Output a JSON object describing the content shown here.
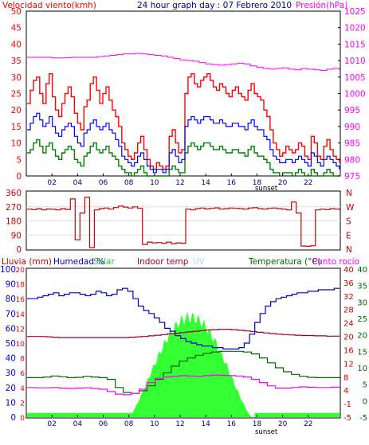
{
  "header": {
    "wind_label": "Velocidad viento(kmh)",
    "title": "24 hour graph day : 07 Febrero 2010",
    "pressure_label": "Presión(hPa)"
  },
  "footer_labels": {
    "top_panel": "sunset",
    "bottom_panel": "sunset"
  },
  "legend": {
    "rain": "Lluvia (mm)",
    "humidity": "Humedad %",
    "solar": "Solar",
    "indoor": "Indoor temp",
    "uv": "UV",
    "temperature": "Temperatura (°C)",
    "dewpoint": "Punto rocío"
  },
  "colors": {
    "wind_gust": "#ff0000",
    "wind_avg": "#0000ff",
    "wind_low": "#008000",
    "pressure": "#ff00ff",
    "direction": "#cc0000",
    "humidity": "#0000cc",
    "indoor": "#990033",
    "temperature": "#006600",
    "dewpoint": "#ff00ff",
    "solar": "#33ff33",
    "rain": "#33ff33",
    "axis_left": "#ff0000",
    "axis_right_pressure": "#ff00ff",
    "axis_blue": "#0000ff",
    "axis_red": "#cc0000",
    "axis_green": "#006600"
  },
  "chart_data": [
    {
      "type": "line",
      "name": "wind-pressure",
      "x_ticks": [
        "02",
        "04",
        "06",
        "08",
        "10",
        "12",
        "14",
        "16",
        "18",
        "20",
        "22"
      ],
      "ylim_left": [
        0,
        50
      ],
      "ylim_right": [
        975,
        1025
      ],
      "yticks_left": [
        "0",
        "5",
        "10",
        "15",
        "20",
        "25",
        "30",
        "35",
        "40",
        "45",
        "50"
      ],
      "yticks_right": [
        "975",
        "980",
        "985",
        "990",
        "995",
        "1000",
        "1005",
        "1010",
        "1015",
        "1020",
        "1025"
      ],
      "series": [
        {
          "key": "gust",
          "values": [
            22,
            26,
            29,
            30,
            25,
            22,
            28,
            31,
            24,
            20,
            18,
            22,
            25,
            27,
            24,
            19,
            16,
            14,
            21,
            23,
            28,
            30,
            26,
            22,
            25,
            27,
            23,
            20,
            18,
            15,
            10,
            8,
            6,
            5,
            7,
            10,
            12,
            8,
            5,
            3,
            2,
            4,
            3,
            2,
            3,
            12,
            14,
            10,
            7,
            8,
            25,
            30,
            31,
            28,
            27,
            29,
            30,
            31,
            29,
            27,
            26,
            28,
            27,
            25,
            24,
            26,
            27,
            25,
            24,
            23,
            26,
            28,
            25,
            24,
            23,
            20,
            18,
            14,
            10,
            8,
            6,
            7,
            9,
            8,
            7,
            8,
            10,
            9,
            6,
            5,
            12,
            10,
            6,
            5,
            9,
            11,
            8,
            6,
            5,
            4
          ]
        },
        {
          "key": "avg",
          "values": [
            14,
            16,
            18,
            19,
            17,
            15,
            16,
            18,
            15,
            13,
            12,
            14,
            15,
            16,
            15,
            12,
            10,
            9,
            13,
            14,
            16,
            17,
            15,
            14,
            15,
            16,
            14,
            13,
            11,
            9,
            6,
            5,
            4,
            3,
            4,
            6,
            7,
            5,
            3,
            2,
            1,
            2,
            2,
            1,
            2,
            7,
            8,
            6,
            4,
            5,
            15,
            17,
            18,
            17,
            16,
            17,
            18,
            18,
            17,
            16,
            16,
            17,
            16,
            15,
            15,
            16,
            16,
            15,
            15,
            14,
            16,
            17,
            15,
            14,
            14,
            12,
            11,
            8,
            6,
            5,
            4,
            4,
            5,
            5,
            4,
            5,
            6,
            5,
            4,
            3,
            7,
            6,
            4,
            3,
            5,
            6,
            5,
            4,
            3,
            2
          ]
        },
        {
          "key": "low",
          "values": [
            7,
            8,
            10,
            11,
            9,
            7,
            9,
            10,
            8,
            6,
            5,
            7,
            8,
            9,
            8,
            5,
            4,
            3,
            6,
            7,
            9,
            10,
            8,
            7,
            8,
            9,
            7,
            6,
            5,
            3,
            2,
            1,
            1,
            0,
            1,
            2,
            3,
            1,
            0,
            0,
            0,
            0,
            0,
            0,
            0,
            2,
            3,
            2,
            1,
            1,
            7,
            9,
            10,
            9,
            8,
            9,
            10,
            10,
            9,
            8,
            8,
            9,
            8,
            7,
            7,
            8,
            8,
            7,
            7,
            6,
            8,
            9,
            7,
            6,
            6,
            5,
            4,
            2,
            1,
            1,
            0,
            1,
            1,
            1,
            0,
            1,
            2,
            1,
            0,
            0,
            2,
            1,
            0,
            0,
            1,
            2,
            1,
            0,
            0,
            0
          ]
        },
        {
          "key": "pressure",
          "values": [
            1011,
            1011,
            1011,
            1011,
            1010.8,
            1010.8,
            1010.9,
            1011,
            1011,
            1011,
            1011,
            1011.2,
            1011.4,
            1011.6,
            1011.8,
            1012,
            1012,
            1012.2,
            1012,
            1011.8,
            1011.6,
            1011.4,
            1011,
            1010.6,
            1010.2,
            1010,
            1009.8,
            1009.4,
            1009,
            1008.8,
            1008.6,
            1008.8,
            1009,
            1009.2,
            1009,
            1008.4,
            1008,
            1007.6,
            1007.4,
            1007.6,
            1007.8,
            1007.4,
            1007.2,
            1007.6,
            1007.4,
            1007.2,
            1007,
            1007.4,
            1007.6,
            1007.2
          ]
        }
      ]
    },
    {
      "type": "line",
      "name": "wind-direction",
      "x_ticks": [
        "02",
        "04",
        "06",
        "08",
        "10",
        "12",
        "14",
        "16",
        "18",
        "20",
        "22"
      ],
      "ylim": [
        0,
        360
      ],
      "yticks_left": [
        "0",
        "90",
        "180",
        "270",
        "360"
      ],
      "yticks_right": [
        "N",
        "E",
        "S",
        "W",
        "N"
      ],
      "series": [
        {
          "key": "direction",
          "values": [
            255,
            252,
            258,
            250,
            256,
            254,
            250,
            258,
            253,
            320,
            60,
            230,
            330,
            10,
            250,
            258,
            262,
            255,
            265,
            275,
            268,
            262,
            270,
            260,
            30,
            45,
            40,
            42,
            38,
            45,
            35,
            40,
            38,
            255,
            250,
            258,
            262,
            256,
            260,
            263,
            255,
            258,
            262,
            260,
            258,
            255,
            262,
            264,
            258,
            255,
            260,
            262,
            258,
            255,
            250,
            300,
            230,
            20,
            18,
            22,
            250,
            255,
            252,
            258,
            255,
            250
          ]
        }
      ]
    },
    {
      "type": "line",
      "name": "climate",
      "x_ticks": [
        "02",
        "04",
        "06",
        "08",
        "10",
        "12",
        "14",
        "16",
        "18",
        "20",
        "22"
      ],
      "yticks_rain": [
        "0",
        "10",
        "20",
        "30",
        "40",
        "50",
        "60",
        "70",
        "80",
        "90",
        "100"
      ],
      "yticks_solar": [
        "0",
        "2",
        "4",
        "6",
        "8",
        "10",
        "12",
        "14",
        "16",
        "18",
        "20"
      ],
      "yticks_temp": [
        "-5",
        "-1",
        "4",
        "8",
        "12",
        "16",
        "20",
        "24",
        "28",
        "32",
        "36",
        "40"
      ],
      "yticks_temp2": [
        "-5",
        "0",
        "5",
        "10",
        "15",
        "20",
        "25",
        "30",
        "35",
        "40"
      ],
      "series": [
        {
          "key": "humidity",
          "values": [
            80,
            80,
            81,
            82,
            83,
            84,
            82,
            83,
            84,
            84,
            83,
            82,
            83,
            85,
            84,
            82,
            83,
            86,
            87,
            85,
            80,
            75,
            72,
            70,
            67,
            64,
            60,
            58,
            55,
            53,
            51,
            50,
            49,
            48,
            48,
            47,
            47,
            46,
            46,
            46,
            47,
            50,
            56,
            64,
            70,
            75,
            78,
            80,
            81,
            82,
            83,
            84,
            84,
            85,
            85,
            86,
            86,
            86,
            87,
            87
          ]
        },
        {
          "key": "indoor",
          "values": [
            19.5,
            19.5,
            19.5,
            19.4,
            19.3,
            19.2,
            19.2,
            19.2,
            19.2,
            19.2,
            19.2,
            19.2,
            19.2,
            19.2,
            19.2,
            19.2,
            19.3,
            19.4,
            19.5,
            19.7,
            19.9,
            20.1,
            20.3,
            20.5,
            20.7,
            20.9,
            21.1,
            21.3,
            21.5,
            21.6,
            21.7,
            21.7,
            21.6,
            21.4,
            21.2,
            21,
            20.8,
            20.6,
            20.4,
            20.2,
            20.1,
            20,
            19.9,
            19.8,
            19.8,
            19.7,
            19.7,
            19.6,
            19.6,
            19.6
          ]
        },
        {
          "key": "temperature",
          "values": [
            7,
            7,
            7.2,
            7.5,
            7.3,
            7,
            7.1,
            7.4,
            7.2,
            7,
            6.5,
            4,
            2.5,
            2.2,
            3,
            4.5,
            6.5,
            8.5,
            10.5,
            12,
            13,
            13.8,
            14.4,
            14.8,
            15,
            15,
            15,
            14.8,
            14.2,
            13,
            11.5,
            10,
            8.8,
            8,
            7.4,
            7.1,
            7,
            7,
            7,
            7.1
          ]
        },
        {
          "key": "dewpoint",
          "values": [
            4,
            3.9,
            3.9,
            4,
            3.8,
            3.7,
            3.8,
            3.9,
            3.7,
            3.5,
            2.8,
            2,
            1.8,
            2.2,
            3.5,
            5.5,
            6.8,
            7.2,
            7.4,
            7.6,
            7.5,
            7.4,
            7.6,
            7.8,
            7.7,
            7.6,
            7.5,
            7.2,
            6.5,
            5.5,
            4.5,
            3.8,
            3.8,
            4,
            4.2,
            4.1,
            4,
            4,
            4.1,
            4.2
          ]
        },
        {
          "key": "solar",
          "peak": 13.5
        },
        {
          "key": "rain",
          "values": [
            1
          ]
        }
      ]
    }
  ]
}
